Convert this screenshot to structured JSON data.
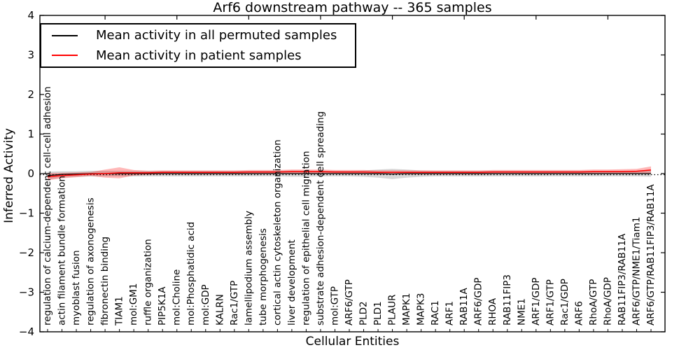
{
  "title": "Arf6 downstream pathway -- 365 samples",
  "axes": {
    "ylabel": "Inferred Activity",
    "xlabel": "Cellular Entities",
    "ytick_labels": [
      "4",
      "3",
      "2",
      "1",
      "0",
      "−1",
      "−2",
      "−3",
      "−4"
    ],
    "ytick_values": [
      4,
      3,
      2,
      1,
      0,
      -1,
      -2,
      -3,
      -4
    ]
  },
  "legend": {
    "items": [
      {
        "label": "Mean activity in all permuted samples",
        "color": "#000000"
      },
      {
        "label": "Mean activity in patient samples",
        "color": "#ff0000"
      }
    ]
  },
  "chart_data": {
    "type": "line",
    "title": "Arf6 downstream pathway -- 365 samples",
    "xlabel": "Cellular Entities",
    "ylabel": "Inferred Activity",
    "ylim": [
      -4,
      4
    ],
    "grid": false,
    "legend_position": "upper left",
    "zero_line_style": "dotted",
    "categories": [
      "regulation of calcium-dependent cell-cell adhesion",
      "actin filament bundle formation",
      "myoblast fusion",
      "regulation of axonogenesis",
      "fibronectin binding",
      "TIAM1",
      "mol:GM1",
      "ruffle organization",
      "PIP5K1A",
      "mol:Choline",
      "mol:Phosphatidic acid",
      "mol:GDP",
      "KALRN",
      "Rac1/GTP",
      "lamellipodium assembly",
      "tube morphogenesis",
      "cortical actin cytoskeleton organization",
      "liver development",
      "regulation of epithelial cell migration",
      "substrate adhesion-dependent cell spreading",
      "mol:GTP",
      "ARF6/GTP",
      "PLD2",
      "PLD1",
      "PLAUR",
      "MAPK1",
      "MAPK3",
      "RAC1",
      "ARF1",
      "RAB11A",
      "ARF6/GDP",
      "RHOA",
      "RAB11FIP3",
      "NME1",
      "ARF1/GDP",
      "ARF1/GTP",
      "Rac1/GDP",
      "ARF6",
      "RhoA/GTP",
      "RhoA/GDP",
      "RAB11FIP3/RAB11A",
      "ARF6/GTP/NME1/Tiam1",
      "ARF6/GTP/RAB11FIP3/RAB11A"
    ],
    "series": [
      {
        "name": "Mean activity in all permuted samples",
        "color": "#000000",
        "band_color": "rgba(0,0,0,0.16)",
        "values": [
          -0.05,
          -0.02,
          -0.01,
          0,
          0,
          0,
          0,
          0,
          0,
          0,
          0,
          0,
          0,
          0,
          0,
          0,
          0,
          0,
          0,
          0,
          0,
          0,
          0,
          0,
          -0.01,
          0,
          0,
          0,
          0,
          0,
          0,
          0,
          0,
          0,
          0,
          0,
          0,
          0,
          0,
          0,
          0,
          0,
          0
        ],
        "std": [
          0.1,
          0.08,
          0.07,
          0.07,
          0.07,
          0.07,
          0.07,
          0.07,
          0.07,
          0.07,
          0.07,
          0.07,
          0.07,
          0.07,
          0.07,
          0.07,
          0.07,
          0.08,
          0.08,
          0.07,
          0.07,
          0.07,
          0.08,
          0.1,
          0.13,
          0.1,
          0.08,
          0.07,
          0.07,
          0.07,
          0.07,
          0.07,
          0.07,
          0.07,
          0.07,
          0.07,
          0.07,
          0.07,
          0.07,
          0.07,
          0.07,
          0.07,
          0.08
        ]
      },
      {
        "name": "Mean activity in patient samples",
        "color": "#ff0000",
        "band_color": "rgba(255,0,0,0.28)",
        "values": [
          -0.08,
          -0.05,
          -0.03,
          -0.01,
          0.0,
          0.02,
          0.02,
          0.02,
          0.03,
          0.03,
          0.03,
          0.03,
          0.03,
          0.03,
          0.04,
          0.04,
          0.04,
          0.05,
          0.05,
          0.05,
          0.04,
          0.04,
          0.04,
          0.03,
          0.03,
          0.03,
          0.03,
          0.03,
          0.03,
          0.03,
          0.03,
          0.04,
          0.04,
          0.04,
          0.04,
          0.04,
          0.04,
          0.04,
          0.05,
          0.05,
          0.05,
          0.06,
          0.09
        ],
        "std": [
          0.09,
          0.07,
          0.06,
          0.05,
          0.1,
          0.14,
          0.07,
          0.05,
          0.05,
          0.05,
          0.05,
          0.05,
          0.05,
          0.05,
          0.05,
          0.05,
          0.05,
          0.05,
          0.05,
          0.05,
          0.05,
          0.05,
          0.05,
          0.05,
          0.05,
          0.05,
          0.05,
          0.05,
          0.05,
          0.05,
          0.05,
          0.05,
          0.05,
          0.05,
          0.05,
          0.05,
          0.05,
          0.05,
          0.05,
          0.05,
          0.06,
          0.06,
          0.09
        ]
      }
    ]
  }
}
